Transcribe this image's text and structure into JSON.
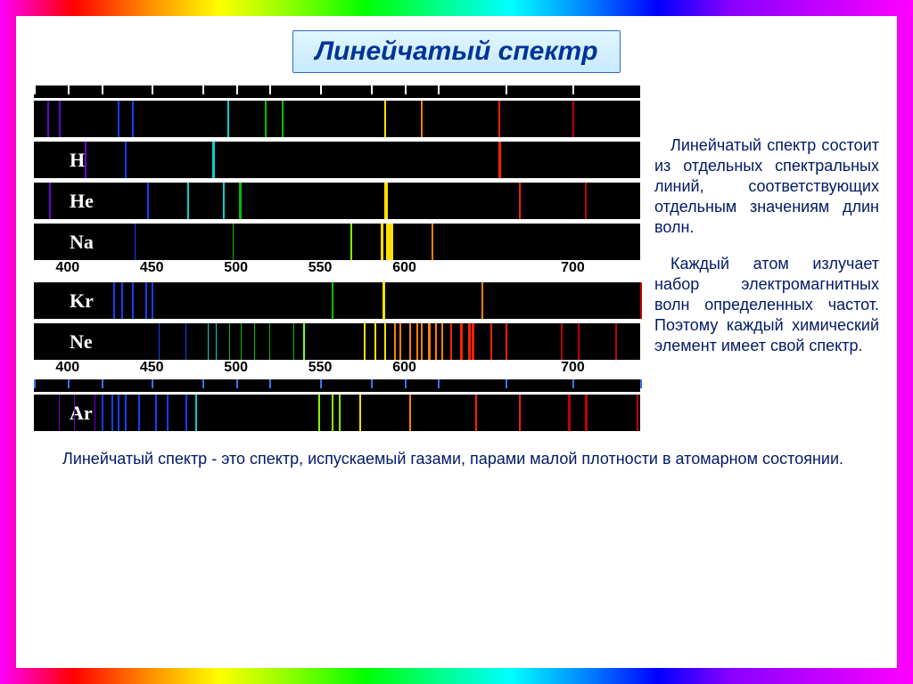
{
  "title": "Линейчатый спектр",
  "paragraph1": "Линейчатый спектр состоит из отдельных спектральных линий, соответствующих отдельным значениям длин волн.",
  "paragraph2": "Каждый атом излучает набор электромагнитных волн определенных частот. Поэтому каждый химический элемент имеет свой спектр.",
  "bottom_text": "Линейчатый спектр - это спектр, испускаемый газами, парами малой плотности в атомарном состоянии.",
  "wavelength_range": {
    "min": 380,
    "max": 740
  },
  "scale_labels": [
    "400",
    "450",
    "500",
    "550",
    "600",
    "700"
  ],
  "scale_positions": [
    400,
    450,
    500,
    550,
    600,
    700
  ],
  "tick_positions": [
    380,
    400,
    420,
    450,
    480,
    500,
    520,
    550,
    580,
    600,
    620,
    660,
    700,
    740
  ],
  "colors": {
    "violet": "#6a00d4",
    "blue": "#1040ff",
    "cyan": "#00d0d0",
    "green": "#00c000",
    "lime": "#80ff00",
    "yellow": "#ffe000",
    "orange": "#ff8000",
    "red": "#ff2000",
    "deepred": "#c00000"
  },
  "spectra": [
    {
      "id": "Fe_unlabeled",
      "label": "",
      "has_top_ticks": true,
      "lines": [
        {
          "wl": 388,
          "c": "violet",
          "w": 2
        },
        {
          "wl": 395,
          "c": "violet",
          "w": 2
        },
        {
          "wl": 430,
          "c": "blue",
          "w": 2
        },
        {
          "wl": 438,
          "c": "blue",
          "w": 2
        },
        {
          "wl": 495,
          "c": "cyan",
          "w": 2
        },
        {
          "wl": 517,
          "c": "green",
          "w": 2
        },
        {
          "wl": 527,
          "c": "green",
          "w": 2
        },
        {
          "wl": 588,
          "c": "yellow",
          "w": 2
        },
        {
          "wl": 610,
          "c": "orange",
          "w": 2
        },
        {
          "wl": 656,
          "c": "red",
          "w": 2
        },
        {
          "wl": 700,
          "c": "deepred",
          "w": 2
        }
      ]
    },
    {
      "id": "H",
      "label": "H",
      "lines": [
        {
          "wl": 410,
          "c": "violet",
          "w": 2
        },
        {
          "wl": 434,
          "c": "blue",
          "w": 2
        },
        {
          "wl": 486,
          "c": "cyan",
          "w": 3
        },
        {
          "wl": 656,
          "c": "red",
          "w": 3
        }
      ]
    },
    {
      "id": "He",
      "label": "He",
      "lines": [
        {
          "wl": 389,
          "c": "violet",
          "w": 2
        },
        {
          "wl": 447,
          "c": "blue",
          "w": 2
        },
        {
          "wl": 471,
          "c": "cyan",
          "w": 2
        },
        {
          "wl": 492,
          "c": "cyan",
          "w": 2
        },
        {
          "wl": 502,
          "c": "green",
          "w": 3
        },
        {
          "wl": 588,
          "c": "yellow",
          "w": 4
        },
        {
          "wl": 668,
          "c": "red",
          "w": 2
        },
        {
          "wl": 707,
          "c": "deepred",
          "w": 2
        }
      ]
    },
    {
      "id": "Na",
      "label": "Na",
      "scale_after": true,
      "lines": [
        {
          "wl": 440,
          "c": "blue",
          "w": 1
        },
        {
          "wl": 498,
          "c": "green",
          "w": 1
        },
        {
          "wl": 568,
          "c": "lime",
          "w": 2
        },
        {
          "wl": 586,
          "c": "yellow",
          "w": 3
        },
        {
          "wl": 589,
          "c": "yellow",
          "w": 6
        },
        {
          "wl": 592,
          "c": "yellow",
          "w": 3
        },
        {
          "wl": 616,
          "c": "orange",
          "w": 2
        }
      ]
    },
    {
      "id": "Kr",
      "label": "Kr",
      "lines": [
        {
          "wl": 427,
          "c": "blue",
          "w": 2
        },
        {
          "wl": 432,
          "c": "blue",
          "w": 2
        },
        {
          "wl": 438,
          "c": "blue",
          "w": 2
        },
        {
          "wl": 446,
          "c": "blue",
          "w": 2
        },
        {
          "wl": 450,
          "c": "blue",
          "w": 2
        },
        {
          "wl": 557,
          "c": "green",
          "w": 2
        },
        {
          "wl": 587,
          "c": "yellow",
          "w": 3
        },
        {
          "wl": 646,
          "c": "orange",
          "w": 2
        },
        {
          "wl": 760,
          "c": "deepred",
          "w": 2
        }
      ]
    },
    {
      "id": "Ne",
      "label": "Ne",
      "scale_after": true,
      "lines": [
        {
          "wl": 454,
          "c": "blue",
          "w": 1
        },
        {
          "wl": 470,
          "c": "blue",
          "w": 1
        },
        {
          "wl": 483,
          "c": "cyan",
          "w": 1
        },
        {
          "wl": 488,
          "c": "cyan",
          "w": 1
        },
        {
          "wl": 496,
          "c": "green",
          "w": 1
        },
        {
          "wl": 503,
          "c": "green",
          "w": 1
        },
        {
          "wl": 511,
          "c": "green",
          "w": 1
        },
        {
          "wl": 520,
          "c": "green",
          "w": 1
        },
        {
          "wl": 534,
          "c": "green",
          "w": 1
        },
        {
          "wl": 540,
          "c": "lime",
          "w": 2
        },
        {
          "wl": 576,
          "c": "yellow",
          "w": 2
        },
        {
          "wl": 582,
          "c": "yellow",
          "w": 2
        },
        {
          "wl": 588,
          "c": "yellow",
          "w": 2
        },
        {
          "wl": 594,
          "c": "orange",
          "w": 2
        },
        {
          "wl": 597,
          "c": "orange",
          "w": 2
        },
        {
          "wl": 603,
          "c": "orange",
          "w": 2
        },
        {
          "wl": 607,
          "c": "orange",
          "w": 2
        },
        {
          "wl": 610,
          "c": "orange",
          "w": 2
        },
        {
          "wl": 614,
          "c": "orange",
          "w": 3
        },
        {
          "wl": 618,
          "c": "orange",
          "w": 2
        },
        {
          "wl": 622,
          "c": "orange",
          "w": 2
        },
        {
          "wl": 627,
          "c": "red",
          "w": 2
        },
        {
          "wl": 633,
          "c": "red",
          "w": 3
        },
        {
          "wl": 638,
          "c": "red",
          "w": 3
        },
        {
          "wl": 640,
          "c": "red",
          "w": 3
        },
        {
          "wl": 651,
          "c": "red",
          "w": 2
        },
        {
          "wl": 660,
          "c": "red",
          "w": 2
        },
        {
          "wl": 693,
          "c": "deepred",
          "w": 2
        },
        {
          "wl": 703,
          "c": "deepred",
          "w": 2
        },
        {
          "wl": 725,
          "c": "deepred",
          "w": 2
        }
      ]
    },
    {
      "id": "Ar",
      "label": "Ar",
      "has_blue_ticks": true,
      "lines": [
        {
          "wl": 395,
          "c": "violet",
          "w": 1
        },
        {
          "wl": 404,
          "c": "violet",
          "w": 1
        },
        {
          "wl": 416,
          "c": "violet",
          "w": 1
        },
        {
          "wl": 420,
          "c": "blue",
          "w": 2
        },
        {
          "wl": 426,
          "c": "blue",
          "w": 2
        },
        {
          "wl": 430,
          "c": "blue",
          "w": 2
        },
        {
          "wl": 434,
          "c": "blue",
          "w": 2
        },
        {
          "wl": 442,
          "c": "blue",
          "w": 2
        },
        {
          "wl": 452,
          "c": "blue",
          "w": 2
        },
        {
          "wl": 459,
          "c": "blue",
          "w": 2
        },
        {
          "wl": 470,
          "c": "blue",
          "w": 2
        },
        {
          "wl": 476,
          "c": "cyan",
          "w": 2
        },
        {
          "wl": 549,
          "c": "lime",
          "w": 2
        },
        {
          "wl": 557,
          "c": "lime",
          "w": 2
        },
        {
          "wl": 561,
          "c": "lime",
          "w": 2
        },
        {
          "wl": 573,
          "c": "yellow",
          "w": 2
        },
        {
          "wl": 603,
          "c": "orange",
          "w": 2
        },
        {
          "wl": 642,
          "c": "red",
          "w": 2
        },
        {
          "wl": 668,
          "c": "red",
          "w": 2
        },
        {
          "wl": 697,
          "c": "deepred",
          "w": 3
        },
        {
          "wl": 707,
          "c": "deepred",
          "w": 3
        },
        {
          "wl": 738,
          "c": "deepred",
          "w": 2
        }
      ]
    }
  ]
}
